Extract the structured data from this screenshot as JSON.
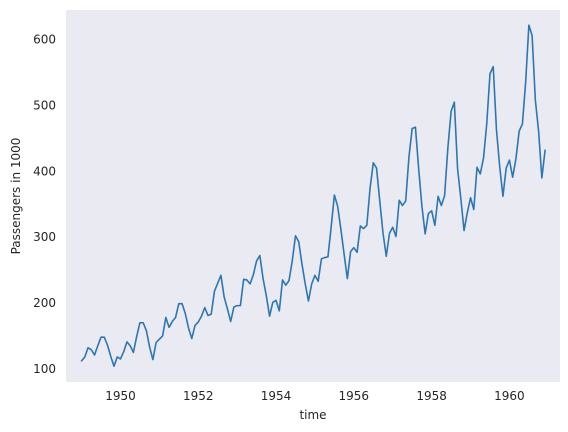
{
  "chart_data": {
    "type": "line",
    "title": "",
    "xlabel": "time",
    "ylabel": "Passengers in 1000",
    "grid": false,
    "legend": "none",
    "xlim": [
      1948.6,
      1961.3
    ],
    "ylim": [
      80,
      645
    ],
    "x_ticks": [
      1950,
      1952,
      1954,
      1956,
      1958,
      1960
    ],
    "y_ticks": [
      100,
      200,
      300,
      400,
      500,
      600
    ],
    "colors": {
      "line": "#2c77b2",
      "plot_background": "#eaeaf2"
    },
    "series": [
      {
        "x_start": 1949.0,
        "x_step": 0.0833333,
        "values": [
          112,
          118,
          132,
          129,
          121,
          135,
          148,
          148,
          136,
          119,
          104,
          118,
          115,
          126,
          141,
          135,
          125,
          149,
          170,
          170,
          158,
          133,
          114,
          140,
          145,
          150,
          178,
          163,
          172,
          178,
          199,
          199,
          184,
          162,
          146,
          166,
          171,
          180,
          193,
          181,
          183,
          218,
          230,
          242,
          209,
          191,
          172,
          194,
          196,
          196,
          236,
          235,
          229,
          243,
          264,
          272,
          237,
          211,
          180,
          201,
          204,
          188,
          235,
          227,
          234,
          264,
          302,
          293,
          259,
          229,
          203,
          229,
          242,
          233,
          267,
          269,
          270,
          315,
          364,
          347,
          312,
          274,
          237,
          278,
          284,
          277,
          317,
          313,
          318,
          374,
          413,
          405,
          355,
          306,
          271,
          306,
          315,
          301,
          356,
          348,
          355,
          422,
          465,
          467,
          404,
          347,
          305,
          336,
          340,
          318,
          362,
          348,
          363,
          435,
          491,
          505,
          404,
          359,
          310,
          337,
          360,
          342,
          406,
          396,
          420,
          472,
          548,
          559,
          463,
          407,
          362,
          405,
          417,
          391,
          419,
          461,
          472,
          535,
          622,
          606,
          508,
          461,
          390,
          432
        ]
      }
    ]
  }
}
